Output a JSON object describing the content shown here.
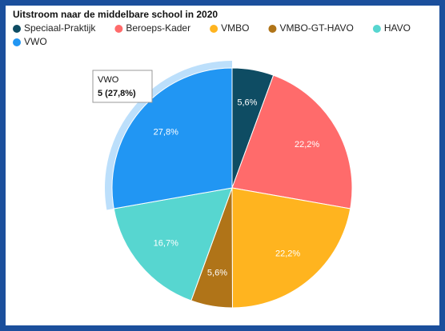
{
  "chart_data": {
    "type": "pie",
    "title": "Uitstroom naar de middelbare school in 2020",
    "categories": [
      "Speciaal-Praktijk",
      "Beroeps-Kader",
      "VMBO",
      "VMBO-GT-HAVO",
      "HAVO",
      "VWO"
    ],
    "values": [
      5.6,
      22.2,
      22.2,
      5.6,
      16.7,
      27.8
    ],
    "value_labels": [
      "5,6%",
      "22,2%",
      "22,2%",
      "5,6%",
      "16,7%",
      "27,8%"
    ],
    "colors": [
      "#0e4c63",
      "#ff6b6b",
      "#ffb41f",
      "#b07418",
      "#57d6d0",
      "#2196f3"
    ],
    "legend": "top",
    "tooltip": {
      "title": "VWO",
      "text": "5 (27,8%)"
    }
  }
}
